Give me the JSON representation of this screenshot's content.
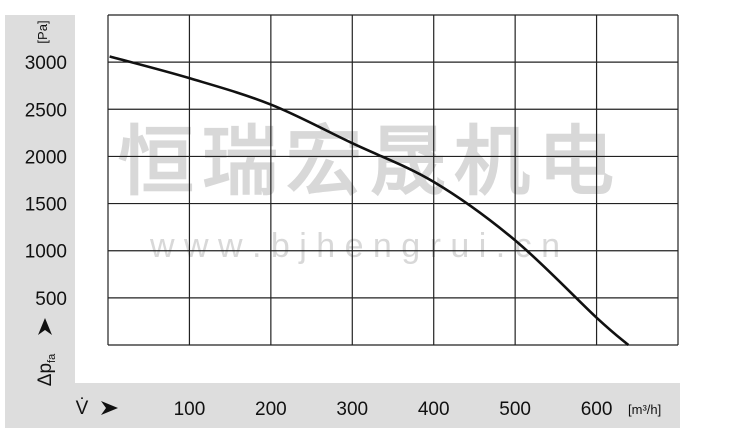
{
  "chart_data": {
    "type": "line",
    "title": "",
    "xlabel": "V̇",
    "xunit": "[m³/h]",
    "ylabel": "Δp",
    "ylabel_sub": "fa",
    "yunit": "[Pa]",
    "xlim": [
      0,
      700
    ],
    "ylim": [
      0,
      3500
    ],
    "xticks": [
      100,
      200,
      300,
      400,
      500,
      600
    ],
    "yticks": [
      500,
      1000,
      1500,
      2000,
      2500,
      3000
    ],
    "grid": true,
    "series": [
      {
        "x": [
          2,
          100,
          200,
          300,
          400,
          500,
          600,
          639
        ],
        "y": [
          3060,
          2830,
          2550,
          2140,
          1730,
          1110,
          290,
          0
        ]
      }
    ],
    "colors": {
      "line": "#111111",
      "grid": "#222222",
      "axis_panel": "#dddddd"
    }
  },
  "watermark": {
    "brand": "恒瑞宏晟机电",
    "url": "w w w . b j h e n g r u i . c n"
  }
}
